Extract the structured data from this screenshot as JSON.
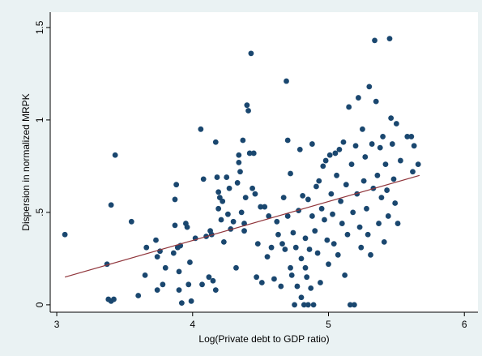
{
  "chart_data": {
    "type": "scatter",
    "x_label": "Log(Private debt to GDP ratio)",
    "y_label": "Dispersion in normalized MRPK",
    "xlim": [
      2.952,
      6.1
    ],
    "ylim": [
      -0.04,
      1.583
    ],
    "xticks": [
      3,
      4,
      5,
      6
    ],
    "yticks": [
      0,
      {
        "value": 0.5,
        "label": ".5"
      },
      1,
      1.5
    ],
    "grid": false,
    "series": [
      {
        "type": "scatter",
        "color": "#1a476f",
        "x": [
          3.06,
          3.37,
          3.38,
          3.4,
          3.42,
          3.4,
          3.43,
          3.55,
          3.6,
          3.65,
          3.66,
          3.73,
          3.74,
          3.74,
          3.76,
          3.78,
          3.8,
          3.86,
          3.87,
          3.87,
          3.88,
          3.89,
          3.9,
          3.9,
          3.91,
          3.92,
          3.95,
          3.96,
          3.97,
          3.98,
          3.99,
          4.02,
          4.06,
          4.07,
          4.08,
          4.1,
          4.12,
          4.13,
          4.14,
          4.15,
          4.17,
          4.17,
          4.18,
          4.19,
          4.19,
          4.2,
          4.21,
          4.22,
          4.23,
          4.25,
          4.26,
          4.27,
          4.28,
          4.3,
          4.32,
          4.33,
          4.34,
          4.34,
          4.35,
          4.36,
          4.37,
          4.38,
          4.38,
          4.39,
          4.4,
          4.41,
          4.42,
          4.43,
          4.44,
          4.45,
          4.46,
          4.47,
          4.48,
          4.5,
          4.51,
          4.53,
          4.55,
          4.56,
          4.58,
          4.6,
          4.62,
          4.63,
          4.65,
          4.66,
          4.67,
          4.68,
          4.69,
          4.7,
          4.7,
          4.72,
          4.72,
          4.73,
          4.74,
          4.75,
          4.76,
          4.77,
          4.78,
          4.79,
          4.8,
          4.8,
          4.81,
          4.82,
          4.83,
          4.83,
          4.84,
          4.85,
          4.85,
          4.86,
          4.87,
          4.88,
          4.88,
          4.89,
          4.9,
          4.91,
          4.92,
          4.93,
          4.94,
          4.95,
          4.96,
          4.97,
          4.98,
          4.99,
          5.0,
          5.01,
          5.02,
          5.03,
          5.04,
          5.05,
          5.06,
          5.07,
          5.08,
          5.09,
          5.1,
          5.11,
          5.12,
          5.13,
          5.14,
          5.15,
          5.16,
          5.17,
          5.18,
          5.19,
          5.2,
          5.21,
          5.22,
          5.23,
          5.24,
          5.25,
          5.26,
          5.27,
          5.28,
          5.29,
          5.3,
          5.31,
          5.32,
          5.33,
          5.34,
          5.35,
          5.36,
          5.37,
          5.38,
          5.39,
          5.4,
          5.41,
          5.42,
          5.43,
          5.44,
          5.45,
          5.46,
          5.47,
          5.48,
          5.49,
          5.5,
          5.51,
          5.53,
          5.58,
          5.61,
          5.62,
          5.63,
          5.66
        ],
        "values": [
          0.38,
          0.22,
          0.03,
          0.02,
          0.03,
          0.54,
          0.81,
          0.45,
          0.05,
          0.16,
          0.31,
          0.35,
          0.26,
          0.08,
          0.29,
          0.11,
          0.2,
          0.28,
          0.43,
          0.57,
          0.65,
          0.31,
          0.08,
          0.18,
          0.32,
          0.01,
          0.44,
          0.42,
          0.11,
          0.23,
          0.02,
          0.36,
          0.95,
          0.11,
          0.68,
          0.37,
          0.15,
          0.4,
          0.38,
          0.13,
          0.88,
          0.08,
          0.69,
          0.52,
          0.61,
          0.58,
          0.46,
          0.56,
          0.34,
          0.69,
          0.49,
          0.63,
          0.41,
          0.45,
          0.2,
          0.66,
          0.81,
          0.77,
          0.72,
          0.5,
          0.89,
          0.44,
          0.4,
          0.58,
          1.08,
          1.05,
          0.82,
          1.36,
          0.63,
          0.82,
          0.6,
          0.15,
          0.33,
          0.53,
          0.12,
          0.53,
          0.26,
          0.48,
          0.31,
          0.14,
          0.45,
          0.38,
          0.1,
          0.33,
          0.58,
          0.3,
          1.21,
          0.89,
          0.48,
          0.71,
          0.2,
          0.16,
          0.39,
          0.0,
          0.31,
          0.1,
          0.51,
          0.84,
          0.25,
          0.04,
          0.59,
          0.0,
          0.36,
          0.2,
          0.15,
          0.57,
          0.0,
          0.3,
          0.09,
          0.87,
          0.48,
          0.0,
          0.4,
          0.64,
          0.28,
          0.67,
          0.12,
          0.52,
          0.75,
          0.46,
          0.78,
          0.35,
          0.22,
          0.81,
          0.6,
          0.49,
          0.33,
          0.82,
          0.7,
          0.27,
          0.84,
          0.56,
          0.44,
          0.88,
          0.16,
          0.65,
          0.38,
          1.07,
          0.0,
          0.76,
          0.5,
          0.0,
          0.86,
          0.6,
          1.12,
          0.42,
          0.31,
          0.95,
          0.67,
          0.8,
          0.52,
          0.38,
          1.18,
          0.27,
          0.87,
          0.63,
          1.43,
          1.1,
          0.7,
          0.44,
          0.85,
          0.58,
          0.91,
          0.34,
          0.76,
          0.62,
          0.48,
          1.44,
          1.01,
          0.87,
          0.68,
          0.55,
          0.98,
          0.44,
          0.78,
          0.91,
          0.91,
          0.72,
          0.86,
          0.76
        ]
      },
      {
        "type": "line",
        "color": "#90353b",
        "x": [
          3.06,
          5.67
        ],
        "values": [
          0.15,
          0.7
        ]
      }
    ]
  }
}
